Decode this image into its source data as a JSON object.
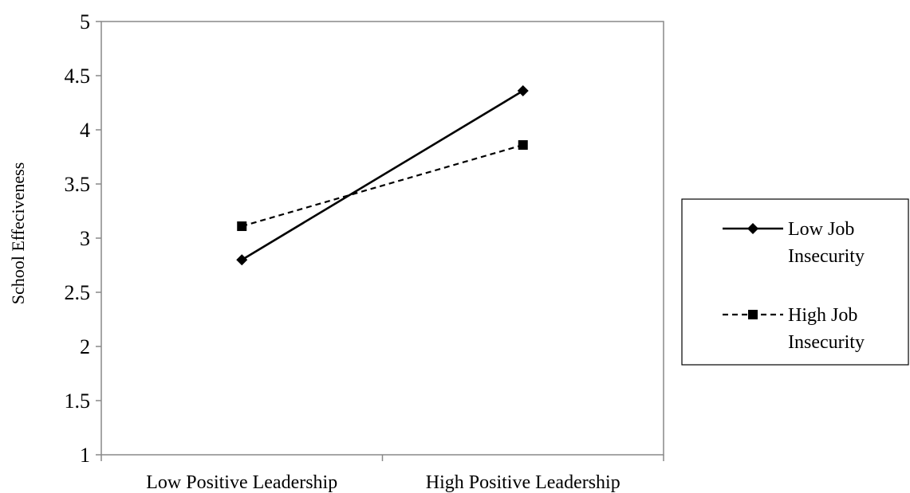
{
  "chart_data": {
    "type": "line",
    "categories": [
      "Low Positive Leadership",
      "High Positive Leadership"
    ],
    "series": [
      {
        "name_lines": [
          "Low Job",
          "Insecurity"
        ],
        "values": [
          2.8,
          4.36
        ],
        "marker": "diamond",
        "line_style": "solid",
        "color": "#000000"
      },
      {
        "name_lines": [
          "High Job",
          "Insecurity"
        ],
        "values": [
          3.11,
          3.86
        ],
        "marker": "square",
        "line_style": "dashed",
        "color": "#000000"
      }
    ],
    "ylabel": "School Effeciveness",
    "xlabel": "",
    "ylim": [
      1,
      5
    ],
    "yticks": [
      "1",
      "1.5",
      "2",
      "2.5",
      "3",
      "3.5",
      "4",
      "4.5",
      "5"
    ],
    "grid": false,
    "legend_position": "right"
  }
}
